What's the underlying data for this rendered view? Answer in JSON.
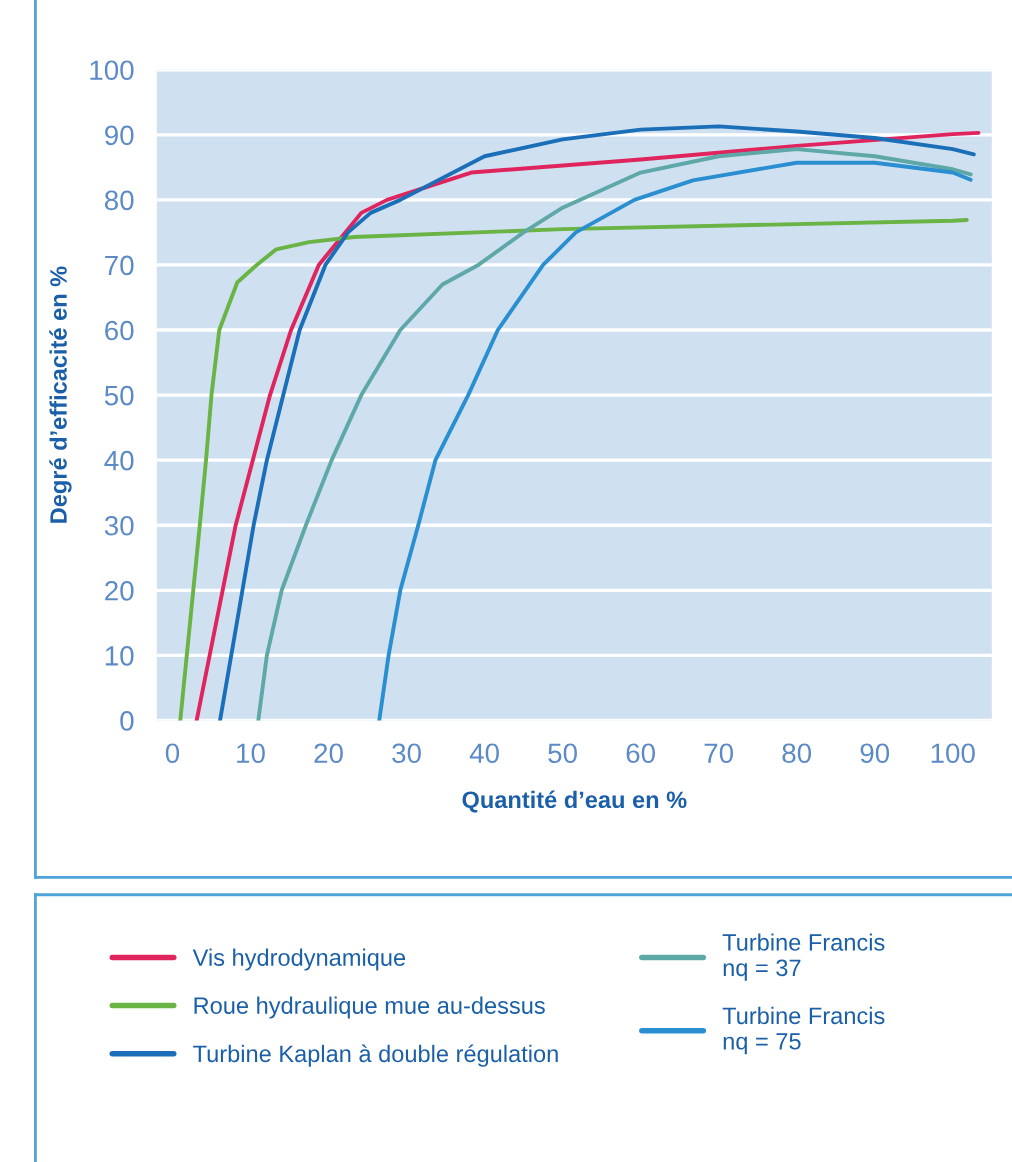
{
  "chart_data": {
    "type": "line",
    "xlabel": "Quantité d’eau en %",
    "ylabel": "Degré d’efficacité en %",
    "xlim": [
      -2,
      105
    ],
    "ylim": [
      0,
      100
    ],
    "xticks": [
      0,
      10,
      20,
      30,
      40,
      50,
      60,
      70,
      80,
      90,
      100
    ],
    "yticks": [
      0,
      10,
      20,
      30,
      40,
      50,
      60,
      70,
      80,
      90,
      100
    ],
    "grid": "y",
    "legend": "bottom",
    "marker": "none",
    "line_style": "solid",
    "series": [
      {
        "name": "Vis hydrodynamique",
        "color": "#e0245e",
        "x": [
          3.1,
          8.1,
          12.5,
          15.2,
          18.75,
          24.2,
          27.5,
          38.3,
          60,
          80,
          100,
          103.3
        ],
        "values": [
          0,
          30,
          50,
          60,
          70,
          78,
          80,
          84.2,
          86.2,
          88.3,
          90.1,
          90.3
        ]
      },
      {
        "name": "Roue hydraulique mue au-dessus",
        "color": "#6ab445",
        "x": [
          1.0,
          3.5,
          4.3,
          5.0,
          6.0,
          8.3,
          10.8,
          13.3,
          17.5,
          23.3,
          50,
          100,
          101.8
        ],
        "values": [
          0,
          30,
          40,
          50,
          60,
          67.3,
          70,
          72.4,
          73.5,
          74.3,
          75.5,
          76.8,
          76.9
        ]
      },
      {
        "name": "Turbine Kaplan à double régulation",
        "color": "#1a6fb8",
        "x": [
          6.1,
          10.4,
          12.1,
          14.2,
          16.3,
          19.6,
          22.5,
          25.4,
          29.2,
          40,
          50,
          60,
          70,
          80,
          90,
          100,
          102.7
        ],
        "values": [
          0,
          30,
          40,
          50,
          60,
          70,
          75,
          78,
          80,
          86.7,
          89.3,
          90.8,
          91.3,
          90.5,
          89.5,
          87.8,
          87.0
        ]
      },
      {
        "name": "Turbine Francis\nnq = 37",
        "color": "#5fa8a8",
        "x": [
          11.0,
          12.1,
          14.0,
          17.1,
          20.4,
          24.2,
          29.2,
          34.6,
          39.2,
          45,
          50,
          60,
          70,
          80,
          90,
          100,
          102.3
        ],
        "values": [
          0,
          10,
          20,
          30,
          40,
          50,
          60,
          67,
          70,
          75,
          78.8,
          84.2,
          86.7,
          87.8,
          86.7,
          84.7,
          83.9
        ]
      },
      {
        "name": "Turbine Francis\nnq = 75",
        "color": "#2a8fd0",
        "x": [
          26.5,
          27.7,
          29.2,
          31.5,
          33.7,
          37.9,
          41.7,
          47.5,
          51.7,
          59.2,
          66.7,
          80,
          90,
          100,
          102.3
        ],
        "values": [
          0,
          10,
          20,
          30,
          40,
          50,
          60,
          70,
          75,
          80,
          83,
          85.7,
          85.7,
          84.2,
          83.1
        ]
      }
    ]
  }
}
